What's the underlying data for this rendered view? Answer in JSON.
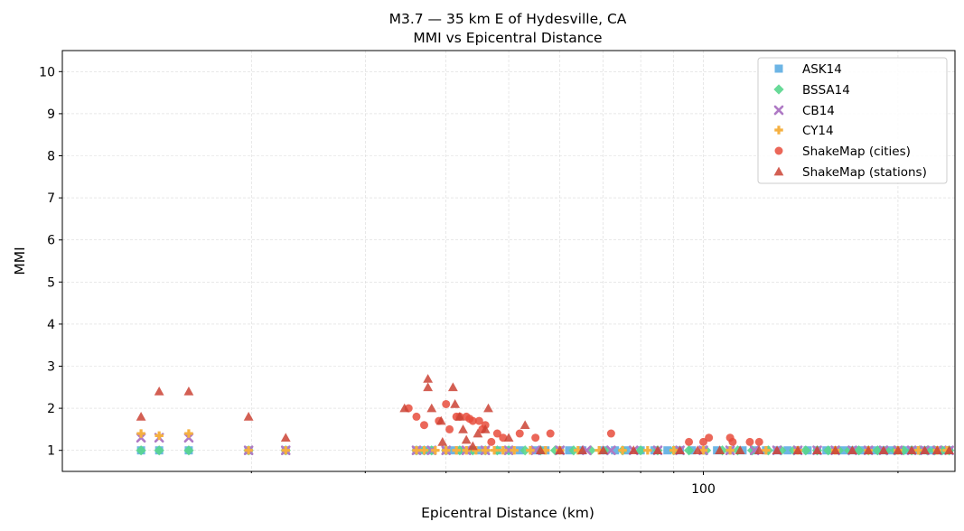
{
  "chart_data": {
    "type": "scatter",
    "title": "M3.7 — 35 km E of Hydesville, CA",
    "subtitle": "MMI vs Epicentral Distance",
    "xlabel": "Epicentral Distance (km)",
    "ylabel": "MMI",
    "xscale": "log",
    "xlim": [
      10.2,
      245
    ],
    "ylim": [
      0.5,
      10.5
    ],
    "x_ticks": [
      100
    ],
    "y_ticks": [
      1,
      2,
      3,
      4,
      5,
      6,
      7,
      8,
      9,
      10
    ],
    "grid": true,
    "legend_position": "top-right",
    "series": [
      {
        "name": "ASK14",
        "marker": "square",
        "color": "#5DADE2",
        "points": [
          [
            13.5,
            1.0
          ],
          [
            14.4,
            1.0
          ],
          [
            16,
            1.0
          ],
          [
            19.8,
            1.0
          ],
          [
            22.6,
            1.0
          ],
          [
            36,
            1.0
          ],
          [
            37,
            1.0
          ],
          [
            38,
            1.0
          ],
          [
            40,
            1.0
          ],
          [
            41,
            1.0
          ],
          [
            42,
            1.0
          ],
          [
            43.5,
            1.0
          ],
          [
            45,
            1.0
          ],
          [
            46,
            1.0
          ],
          [
            48,
            1.0
          ],
          [
            50,
            1.0
          ],
          [
            52,
            1.0
          ],
          [
            55,
            1.0
          ],
          [
            57,
            1.0
          ],
          [
            60,
            1.0
          ],
          [
            62,
            1.0
          ],
          [
            65,
            1.0
          ],
          [
            70,
            1.0
          ],
          [
            73,
            1.0
          ],
          [
            76,
            1.0
          ],
          [
            80,
            1.0
          ],
          [
            84,
            1.0
          ],
          [
            88,
            1.0
          ],
          [
            92,
            1.0
          ],
          [
            96,
            1.0
          ],
          [
            100,
            1.0
          ],
          [
            105,
            1.0
          ],
          [
            110,
            1.0
          ],
          [
            115,
            1.0
          ],
          [
            120,
            1.0
          ],
          [
            125,
            1.0
          ],
          [
            130,
            1.0
          ],
          [
            135,
            1.0
          ],
          [
            140,
            1.0
          ],
          [
            145,
            1.0
          ],
          [
            150,
            1.0
          ],
          [
            155,
            1.0
          ],
          [
            160,
            1.0
          ],
          [
            165,
            1.0
          ],
          [
            170,
            1.0
          ],
          [
            175,
            1.0
          ],
          [
            180,
            1.0
          ],
          [
            185,
            1.0
          ],
          [
            190,
            1.0
          ],
          [
            195,
            1.0
          ],
          [
            200,
            1.0
          ],
          [
            205,
            1.0
          ],
          [
            210,
            1.0
          ],
          [
            215,
            1.0
          ],
          [
            220,
            1.0
          ],
          [
            225,
            1.0
          ],
          [
            230,
            1.0
          ],
          [
            235,
            1.0
          ],
          [
            240,
            1.0
          ]
        ]
      },
      {
        "name": "BSSA14",
        "marker": "diamond",
        "color": "#58D68D",
        "points": [
          [
            13.5,
            1.0
          ],
          [
            14.4,
            1.0
          ],
          [
            16,
            1.0
          ],
          [
            19.8,
            1.0
          ],
          [
            22.6,
            1.0
          ],
          [
            36,
            1.0
          ],
          [
            37,
            1.0
          ],
          [
            38,
            1.0
          ],
          [
            40,
            1.0
          ],
          [
            42,
            1.0
          ],
          [
            44,
            1.0
          ],
          [
            46,
            1.0
          ],
          [
            48,
            1.0
          ],
          [
            50,
            1.0
          ],
          [
            53,
            1.0
          ],
          [
            56,
            1.0
          ],
          [
            59,
            1.0
          ],
          [
            63,
            1.0
          ],
          [
            67,
            1.0
          ],
          [
            71,
            1.0
          ],
          [
            75,
            1.0
          ],
          [
            80,
            1.0
          ],
          [
            85,
            1.0
          ],
          [
            90,
            1.0
          ],
          [
            95,
            1.0
          ],
          [
            101,
            1.0
          ],
          [
            107,
            1.0
          ],
          [
            113,
            1.0
          ],
          [
            119,
            1.0
          ],
          [
            126,
            1.0
          ],
          [
            132,
            1.0
          ],
          [
            138,
            1.0
          ],
          [
            144,
            1.0
          ],
          [
            150,
            1.0
          ],
          [
            156,
            1.0
          ],
          [
            162,
            1.0
          ],
          [
            168,
            1.0
          ],
          [
            174,
            1.0
          ],
          [
            180,
            1.0
          ],
          [
            186,
            1.0
          ],
          [
            192,
            1.0
          ],
          [
            198,
            1.0
          ],
          [
            204,
            1.0
          ],
          [
            210,
            1.0
          ],
          [
            216,
            1.0
          ],
          [
            222,
            1.0
          ],
          [
            228,
            1.0
          ],
          [
            234,
            1.0
          ],
          [
            240,
            1.0
          ]
        ]
      },
      {
        "name": "CB14",
        "marker": "x",
        "color": "#AF7AC5",
        "points": [
          [
            13.5,
            1.3
          ],
          [
            14.4,
            1.3
          ],
          [
            16,
            1.3
          ],
          [
            19.8,
            1.0
          ],
          [
            22.6,
            1.0
          ],
          [
            36,
            1.0
          ],
          [
            38,
            1.0
          ],
          [
            40,
            1.0
          ],
          [
            43,
            1.0
          ],
          [
            46,
            1.0
          ],
          [
            50,
            1.0
          ],
          [
            55,
            1.0
          ],
          [
            60,
            1.0
          ],
          [
            66,
            1.0
          ],
          [
            72,
            1.0
          ],
          [
            78,
            1.0
          ],
          [
            85,
            1.0
          ],
          [
            92,
            1.0
          ],
          [
            100,
            1.0
          ],
          [
            110,
            1.0
          ],
          [
            120,
            1.0
          ],
          [
            130,
            1.0
          ],
          [
            140,
            1.0
          ],
          [
            150,
            1.0
          ],
          [
            160,
            1.0
          ],
          [
            170,
            1.0
          ],
          [
            180,
            1.0
          ],
          [
            190,
            1.0
          ],
          [
            200,
            1.0
          ],
          [
            210,
            1.0
          ],
          [
            220,
            1.0
          ],
          [
            230,
            1.0
          ],
          [
            240,
            1.0
          ]
        ]
      },
      {
        "name": "CY14",
        "marker": "plus",
        "color": "#F5B041",
        "points": [
          [
            13.5,
            1.4
          ],
          [
            14.4,
            1.35
          ],
          [
            16,
            1.4
          ],
          [
            19.8,
            1.0
          ],
          [
            22.6,
            1.0
          ],
          [
            36,
            1.0
          ],
          [
            37,
            1.0
          ],
          [
            38.5,
            1.0
          ],
          [
            40,
            1.0
          ],
          [
            41.5,
            1.0
          ],
          [
            43,
            1.0
          ],
          [
            44.5,
            1.0
          ],
          [
            46,
            1.0
          ],
          [
            47.5,
            1.0
          ],
          [
            49,
            1.0
          ],
          [
            51,
            1.0
          ],
          [
            54,
            1.0
          ],
          [
            57,
            1.0
          ],
          [
            60,
            1.0
          ],
          [
            64,
            1.0
          ],
          [
            69,
            1.0
          ],
          [
            75,
            1.0
          ],
          [
            82,
            1.0
          ],
          [
            90,
            1.0
          ],
          [
            100,
            1.0
          ],
          [
            110,
            1.0
          ],
          [
            125,
            1.0
          ],
          [
            140,
            1.0
          ],
          [
            160,
            1.0
          ],
          [
            180,
            1.0
          ],
          [
            200,
            1.0
          ],
          [
            215,
            1.0
          ],
          [
            230,
            1.0
          ],
          [
            238,
            1.0
          ]
        ]
      },
      {
        "name": "ShakeMap (cities)",
        "marker": "circle",
        "color": "#E74C3C",
        "points": [
          [
            35,
            2.0
          ],
          [
            36,
            1.8
          ],
          [
            37,
            1.6
          ],
          [
            39,
            1.7
          ],
          [
            40,
            2.1
          ],
          [
            40.5,
            1.5
          ],
          [
            41.5,
            1.8
          ],
          [
            42,
            1.8
          ],
          [
            43,
            1.8
          ],
          [
            43.5,
            1.75
          ],
          [
            44,
            1.7
          ],
          [
            45,
            1.7
          ],
          [
            45.5,
            1.5
          ],
          [
            46,
            1.6
          ],
          [
            47,
            1.2
          ],
          [
            48,
            1.4
          ],
          [
            49,
            1.3
          ],
          [
            52,
            1.4
          ],
          [
            55,
            1.3
          ],
          [
            58,
            1.4
          ],
          [
            72,
            1.4
          ],
          [
            95,
            1.2
          ],
          [
            100,
            1.2
          ],
          [
            102,
            1.3
          ],
          [
            110,
            1.3
          ],
          [
            111,
            1.2
          ],
          [
            118,
            1.2
          ],
          [
            122,
            1.2
          ]
        ]
      },
      {
        "name": "ShakeMap (stations)",
        "marker": "triangle",
        "color": "#CB4335",
        "points": [
          [
            13.5,
            1.8
          ],
          [
            14.4,
            2.4
          ],
          [
            16,
            2.4
          ],
          [
            19.8,
            1.8
          ],
          [
            22.6,
            1.3
          ],
          [
            34.5,
            2.0
          ],
          [
            37.5,
            2.7
          ],
          [
            37.5,
            2.5
          ],
          [
            38,
            2.0
          ],
          [
            39.3,
            1.7
          ],
          [
            39.5,
            1.2
          ],
          [
            41,
            2.5
          ],
          [
            41.3,
            2.1
          ],
          [
            42,
            1.8
          ],
          [
            42.5,
            1.5
          ],
          [
            43,
            1.25
          ],
          [
            44,
            1.1
          ],
          [
            44.8,
            1.4
          ],
          [
            46,
            1.5
          ],
          [
            46.5,
            2.0
          ],
          [
            50,
            1.3
          ],
          [
            53,
            1.6
          ],
          [
            56,
            1.0
          ],
          [
            60,
            1.0
          ],
          [
            65,
            1.0
          ],
          [
            70,
            1.0
          ],
          [
            78,
            1.0
          ],
          [
            85,
            1.0
          ],
          [
            92,
            1.0
          ],
          [
            98,
            1.0
          ],
          [
            106,
            1.0
          ],
          [
            114,
            1.0
          ],
          [
            122,
            1.0
          ],
          [
            130,
            1.0
          ],
          [
            140,
            1.0
          ],
          [
            150,
            1.0
          ],
          [
            160,
            1.0
          ],
          [
            170,
            1.0
          ],
          [
            180,
            1.0
          ],
          [
            190,
            1.0
          ],
          [
            200,
            1.0
          ],
          [
            210,
            1.0
          ],
          [
            220,
            1.0
          ],
          [
            230,
            1.0
          ],
          [
            240,
            1.0
          ]
        ]
      }
    ]
  }
}
